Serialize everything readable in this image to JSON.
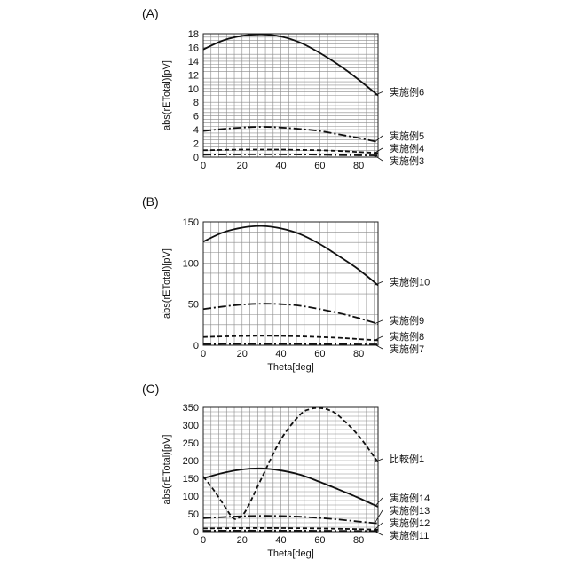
{
  "chart_data": [
    {
      "type": "line",
      "panel_label": "(A)",
      "xlabel": "",
      "ylabel": "abs(rETotal)[pV]",
      "xlim": [
        0,
        90
      ],
      "ylim": [
        0,
        18
      ],
      "x_ticks": [
        0,
        20,
        40,
        60,
        80
      ],
      "y_ticks": [
        0,
        2,
        4,
        6,
        8,
        10,
        12,
        14,
        16,
        18
      ],
      "grid": true,
      "series": [
        {
          "name": "実施例6",
          "style": "solid",
          "x": [
            0,
            10,
            20,
            30,
            40,
            50,
            60,
            70,
            80,
            90
          ],
          "y": [
            15.7,
            17.0,
            17.7,
            17.9,
            17.6,
            16.7,
            15.2,
            13.4,
            11.3,
            9.0
          ]
        },
        {
          "name": "実施例5",
          "style": "dashdot",
          "x": [
            0,
            10,
            20,
            30,
            40,
            50,
            60,
            70,
            80,
            90
          ],
          "y": [
            3.8,
            4.1,
            4.3,
            4.4,
            4.3,
            4.1,
            3.8,
            3.3,
            2.8,
            2.2
          ]
        },
        {
          "name": "実施例4",
          "style": "dashed",
          "x": [
            0,
            10,
            20,
            30,
            40,
            50,
            60,
            70,
            80,
            90
          ],
          "y": [
            1.0,
            1.05,
            1.1,
            1.1,
            1.1,
            1.05,
            1.0,
            0.9,
            0.75,
            0.6
          ]
        },
        {
          "name": "実施例3",
          "style": "dashdot",
          "x": [
            0,
            10,
            20,
            30,
            40,
            50,
            60,
            70,
            80,
            90
          ],
          "y": [
            0.35,
            0.38,
            0.4,
            0.4,
            0.4,
            0.38,
            0.35,
            0.3,
            0.27,
            0.25
          ]
        }
      ]
    },
    {
      "type": "line",
      "panel_label": "(B)",
      "xlabel": "Theta[deg]",
      "ylabel": "abs(rETotal)[pV]",
      "xlim": [
        0,
        90
      ],
      "ylim": [
        0,
        150
      ],
      "x_ticks": [
        0,
        20,
        40,
        60,
        80
      ],
      "y_ticks": [
        0,
        50,
        100,
        150
      ],
      "grid": true,
      "series": [
        {
          "name": "実施例10",
          "style": "solid",
          "x": [
            0,
            10,
            20,
            30,
            40,
            50,
            60,
            70,
            80,
            90
          ],
          "y": [
            126,
            137,
            143,
            145,
            142,
            135,
            123,
            108,
            92,
            73
          ]
        },
        {
          "name": "実施例9",
          "style": "dashdot",
          "x": [
            0,
            10,
            20,
            30,
            40,
            50,
            60,
            70,
            80,
            90
          ],
          "y": [
            44,
            47,
            49.5,
            50.5,
            50,
            48,
            44,
            39,
            33,
            26
          ]
        },
        {
          "name": "実施例8",
          "style": "dashed",
          "x": [
            0,
            10,
            20,
            30,
            40,
            50,
            60,
            70,
            80,
            90
          ],
          "y": [
            10,
            10.7,
            11.2,
            11.5,
            11.3,
            10.8,
            10,
            9,
            7.5,
            6
          ]
        },
        {
          "name": "実施例7",
          "style": "dashdot",
          "x": [
            0,
            10,
            20,
            30,
            40,
            50,
            60,
            70,
            80,
            90
          ],
          "y": [
            1.5,
            1.6,
            1.7,
            1.7,
            1.7,
            1.6,
            1.5,
            1.3,
            1.1,
            1.0
          ]
        }
      ]
    },
    {
      "type": "line",
      "panel_label": "(C)",
      "xlabel": "Theta[deg]",
      "ylabel": "abs(rETotal)[pV]",
      "xlim": [
        0,
        90
      ],
      "ylim": [
        0,
        350
      ],
      "x_ticks": [
        0,
        20,
        40,
        60,
        80
      ],
      "y_ticks": [
        0,
        50,
        100,
        150,
        200,
        250,
        300,
        350
      ],
      "grid": true,
      "series": [
        {
          "name": "比較例1",
          "style": "dashed",
          "x": [
            0,
            5,
            10,
            15,
            18,
            22,
            30,
            40,
            50,
            55,
            60,
            65,
            70,
            80,
            90
          ],
          "y": [
            155,
            120,
            80,
            40,
            38,
            60,
            150,
            260,
            330,
            345,
            348,
            342,
            325,
            270,
            195
          ]
        },
        {
          "name": "実施例14",
          "style": "solid",
          "x": [
            0,
            10,
            20,
            30,
            40,
            50,
            60,
            70,
            80,
            90
          ],
          "y": [
            150,
            165,
            175,
            178,
            172,
            160,
            140,
            118,
            95,
            70
          ]
        },
        {
          "name": "実施例13",
          "style": "dashdot",
          "x": [
            0,
            10,
            20,
            30,
            40,
            50,
            60,
            70,
            80,
            90
          ],
          "y": [
            38,
            41,
            43.5,
            44.5,
            44,
            42,
            38.5,
            34,
            28.5,
            23
          ]
        },
        {
          "name": "実施例12",
          "style": "dashed",
          "x": [
            0,
            10,
            20,
            30,
            40,
            50,
            60,
            70,
            80,
            90
          ],
          "y": [
            9,
            9.6,
            10,
            10.2,
            10,
            9.6,
            9,
            8,
            7,
            5.5
          ]
        },
        {
          "name": "実施例11",
          "style": "dashdot",
          "x": [
            0,
            10,
            20,
            30,
            40,
            50,
            60,
            70,
            80,
            90
          ],
          "y": [
            2.5,
            2.7,
            2.9,
            2.9,
            2.9,
            2.7,
            2.5,
            2.2,
            1.9,
            1.5
          ]
        }
      ]
    }
  ]
}
